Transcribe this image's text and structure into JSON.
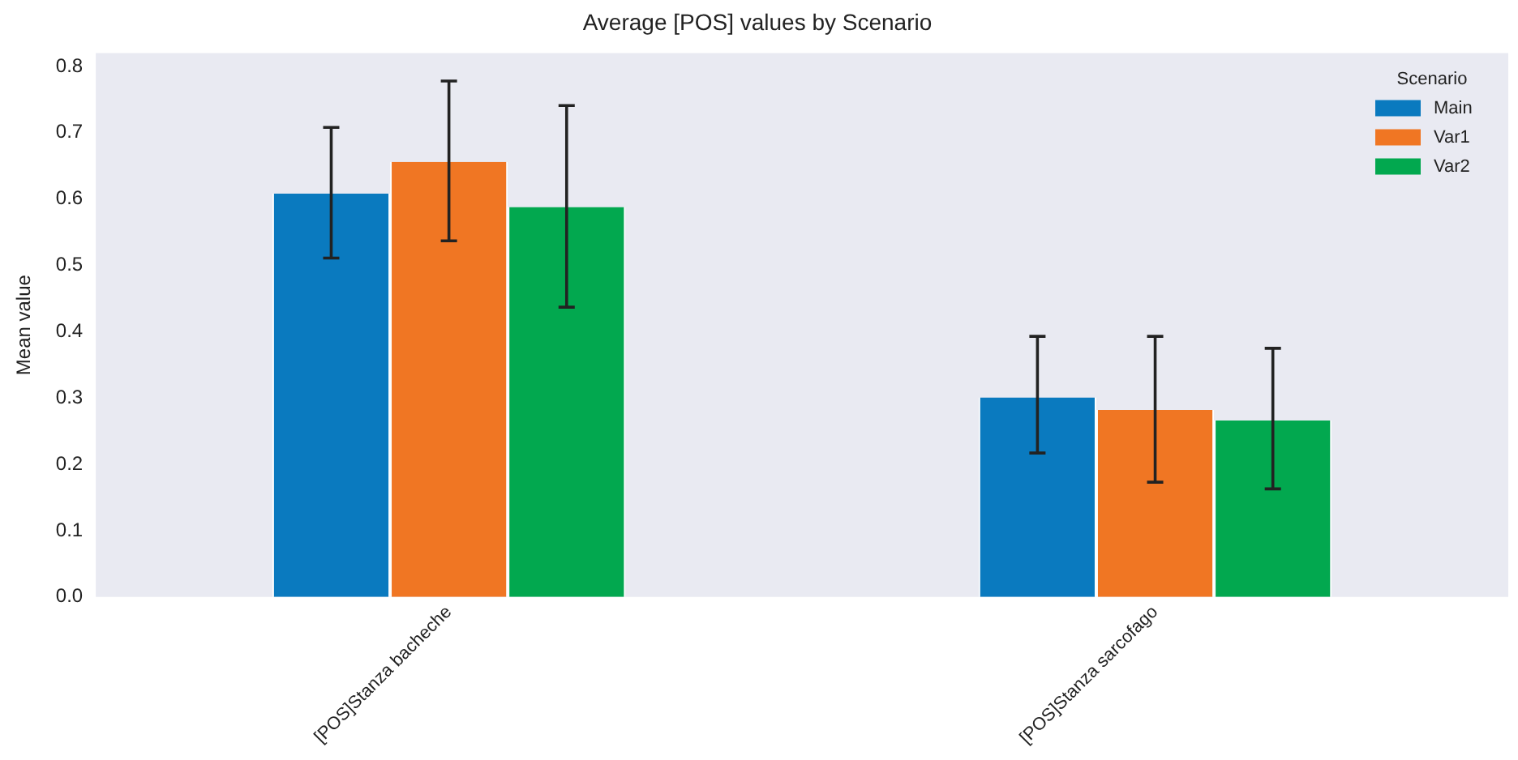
{
  "chart_data": {
    "type": "bar",
    "title": "Average [POS] values by Scenario",
    "ylabel": "Mean value",
    "categories": [
      "[POS]Stanza bacheche",
      "[POS]Stanza sarcofago"
    ],
    "series": [
      {
        "name": "Main",
        "color": "#0a7abf",
        "values": [
          0.608,
          0.301
        ],
        "errors": [
          [
            0.511,
            0.708
          ],
          [
            0.217,
            0.393
          ]
        ]
      },
      {
        "name": "Var1",
        "color": "#f07623",
        "values": [
          0.656,
          0.282
        ],
        "errors": [
          [
            0.537,
            0.778
          ],
          [
            0.173,
            0.393
          ]
        ]
      },
      {
        "name": "Var2",
        "color": "#02a84f",
        "values": [
          0.588,
          0.266
        ],
        "errors": [
          [
            0.437,
            0.741
          ],
          [
            0.163,
            0.375
          ]
        ]
      }
    ],
    "ylim": [
      0,
      0.82
    ],
    "yticks": [
      {
        "value": 0,
        "label": "0.0"
      },
      0.1,
      0.2,
      0.3,
      0.4,
      0.5,
      0.6,
      0.7,
      0.8
    ],
    "legend": "top right",
    "legend_title": "Scenario",
    "grid": false
  }
}
